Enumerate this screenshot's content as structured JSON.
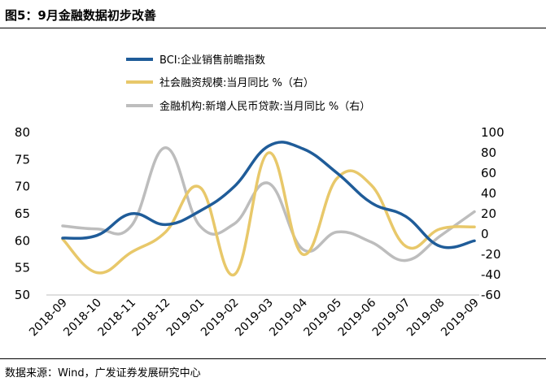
{
  "title": "图5：9月金融数据初步改善",
  "source": "数据来源：Wind，广发证券发展研究中心",
  "chart_data": {
    "type": "line",
    "categories": [
      "2018-09",
      "2018-10",
      "2018-11",
      "2018-12",
      "2019-01",
      "2019-02",
      "2019-03",
      "2019-04",
      "2019-05",
      "2019-06",
      "2019-07",
      "2019-08",
      "2019-09"
    ],
    "series": [
      {
        "name": "BCI:企业销售前瞻指数",
        "axis": "left",
        "color": "#1f5c99",
        "values": [
          60.5,
          61.0,
          65.0,
          63.0,
          65.5,
          70.0,
          77.5,
          77.0,
          72.5,
          67.0,
          64.5,
          59.0,
          60.0
        ]
      },
      {
        "name": "社会融资规模:当月同比 %（右）",
        "axis": "right",
        "color": "#e8c86a",
        "values": [
          -5,
          -38,
          -18,
          2,
          46,
          -40,
          80,
          -20,
          55,
          48,
          -12,
          5,
          7
        ]
      },
      {
        "name": "金融机构:新增人民币贷款:当月同比 %（右）",
        "axis": "right",
        "color": "#bdbdbd",
        "values": [
          8,
          5,
          8,
          85,
          8,
          10,
          50,
          -15,
          2,
          -8,
          -26,
          -2,
          22
        ]
      }
    ],
    "y_left": {
      "min": 50,
      "max": 80,
      "ticks": [
        50,
        55,
        60,
        65,
        70,
        75,
        80
      ]
    },
    "y_right": {
      "min": -60,
      "max": 100,
      "ticks": [
        -60,
        -40,
        -20,
        0,
        20,
        40,
        60,
        80,
        100
      ]
    },
    "legend_position": "top-left",
    "grid": false
  }
}
